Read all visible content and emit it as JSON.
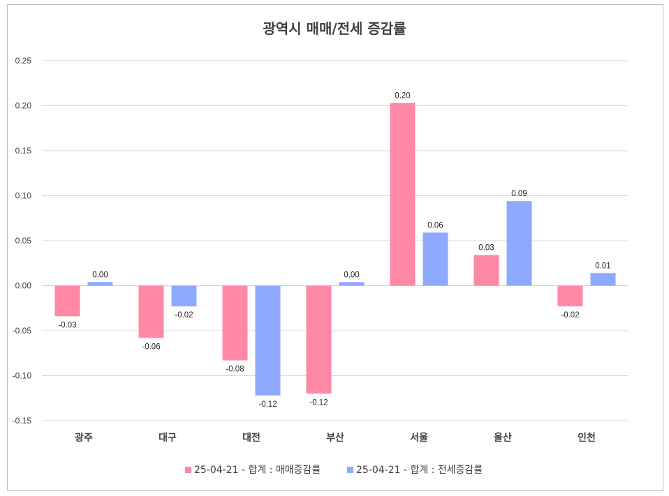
{
  "chart_data": {
    "type": "bar",
    "title": "광역시 매매/전세 증감률",
    "categories": [
      "광주",
      "대구",
      "대전",
      "부산",
      "서울",
      "울산",
      "인천"
    ],
    "series": [
      {
        "name": "25-04-21 - 합계 : 매매증감률",
        "color": "#ff88a6",
        "values": [
          -0.034,
          -0.058,
          -0.083,
          -0.12,
          0.203,
          0.034,
          -0.023
        ],
        "labels": [
          "-0.03",
          "-0.06",
          "-0.08",
          "-0.12",
          "0.20",
          "0.03",
          "-0.02"
        ]
      },
      {
        "name": "25-04-21 - 합계 : 전세증감률",
        "color": "#8eaaff",
        "values": [
          0.004,
          -0.023,
          -0.122,
          0.004,
          0.059,
          0.094,
          0.014
        ],
        "labels": [
          "0.00",
          "-0.02",
          "-0.12",
          "0.00",
          "0.06",
          "0.09",
          "0.01"
        ]
      }
    ],
    "ylim": [
      -0.15,
      0.25
    ],
    "yticks": [
      "-0.15",
      "-0.10",
      "-0.05",
      "0.00",
      "0.05",
      "0.10",
      "0.15",
      "0.20",
      "0.25"
    ],
    "xlabel": "",
    "ylabel": "",
    "legend": "bottom",
    "grid": true
  }
}
